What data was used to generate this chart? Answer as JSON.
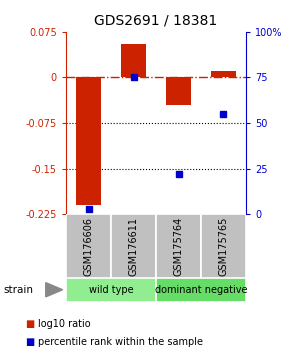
{
  "title": "GDS2691 / 18381",
  "samples": [
    "GSM176606",
    "GSM176611",
    "GSM175764",
    "GSM175765"
  ],
  "log10_ratio": [
    -0.21,
    0.055,
    -0.045,
    0.01
  ],
  "percentile_rank": [
    3.0,
    75.0,
    22.0,
    55.0
  ],
  "groups": [
    {
      "label": "wild type",
      "samples": [
        0,
        1
      ],
      "color": "#90EE90"
    },
    {
      "label": "dominant negative",
      "samples": [
        2,
        3
      ],
      "color": "#66DD66"
    }
  ],
  "ylim_left": [
    -0.225,
    0.075
  ],
  "ylim_right": [
    0,
    100
  ],
  "yticks_left": [
    0.075,
    0,
    -0.075,
    -0.15,
    -0.225
  ],
  "yticks_right": [
    100,
    75,
    50,
    25,
    0
  ],
  "bar_color": "#CC2200",
  "dot_color": "#0000CC",
  "bg_color": "#FFFFFF",
  "sample_box_color": "#C0C0C0",
  "strain_label": "strain",
  "legend_bar_label": "log10 ratio",
  "legend_dot_label": "percentile rank within the sample"
}
